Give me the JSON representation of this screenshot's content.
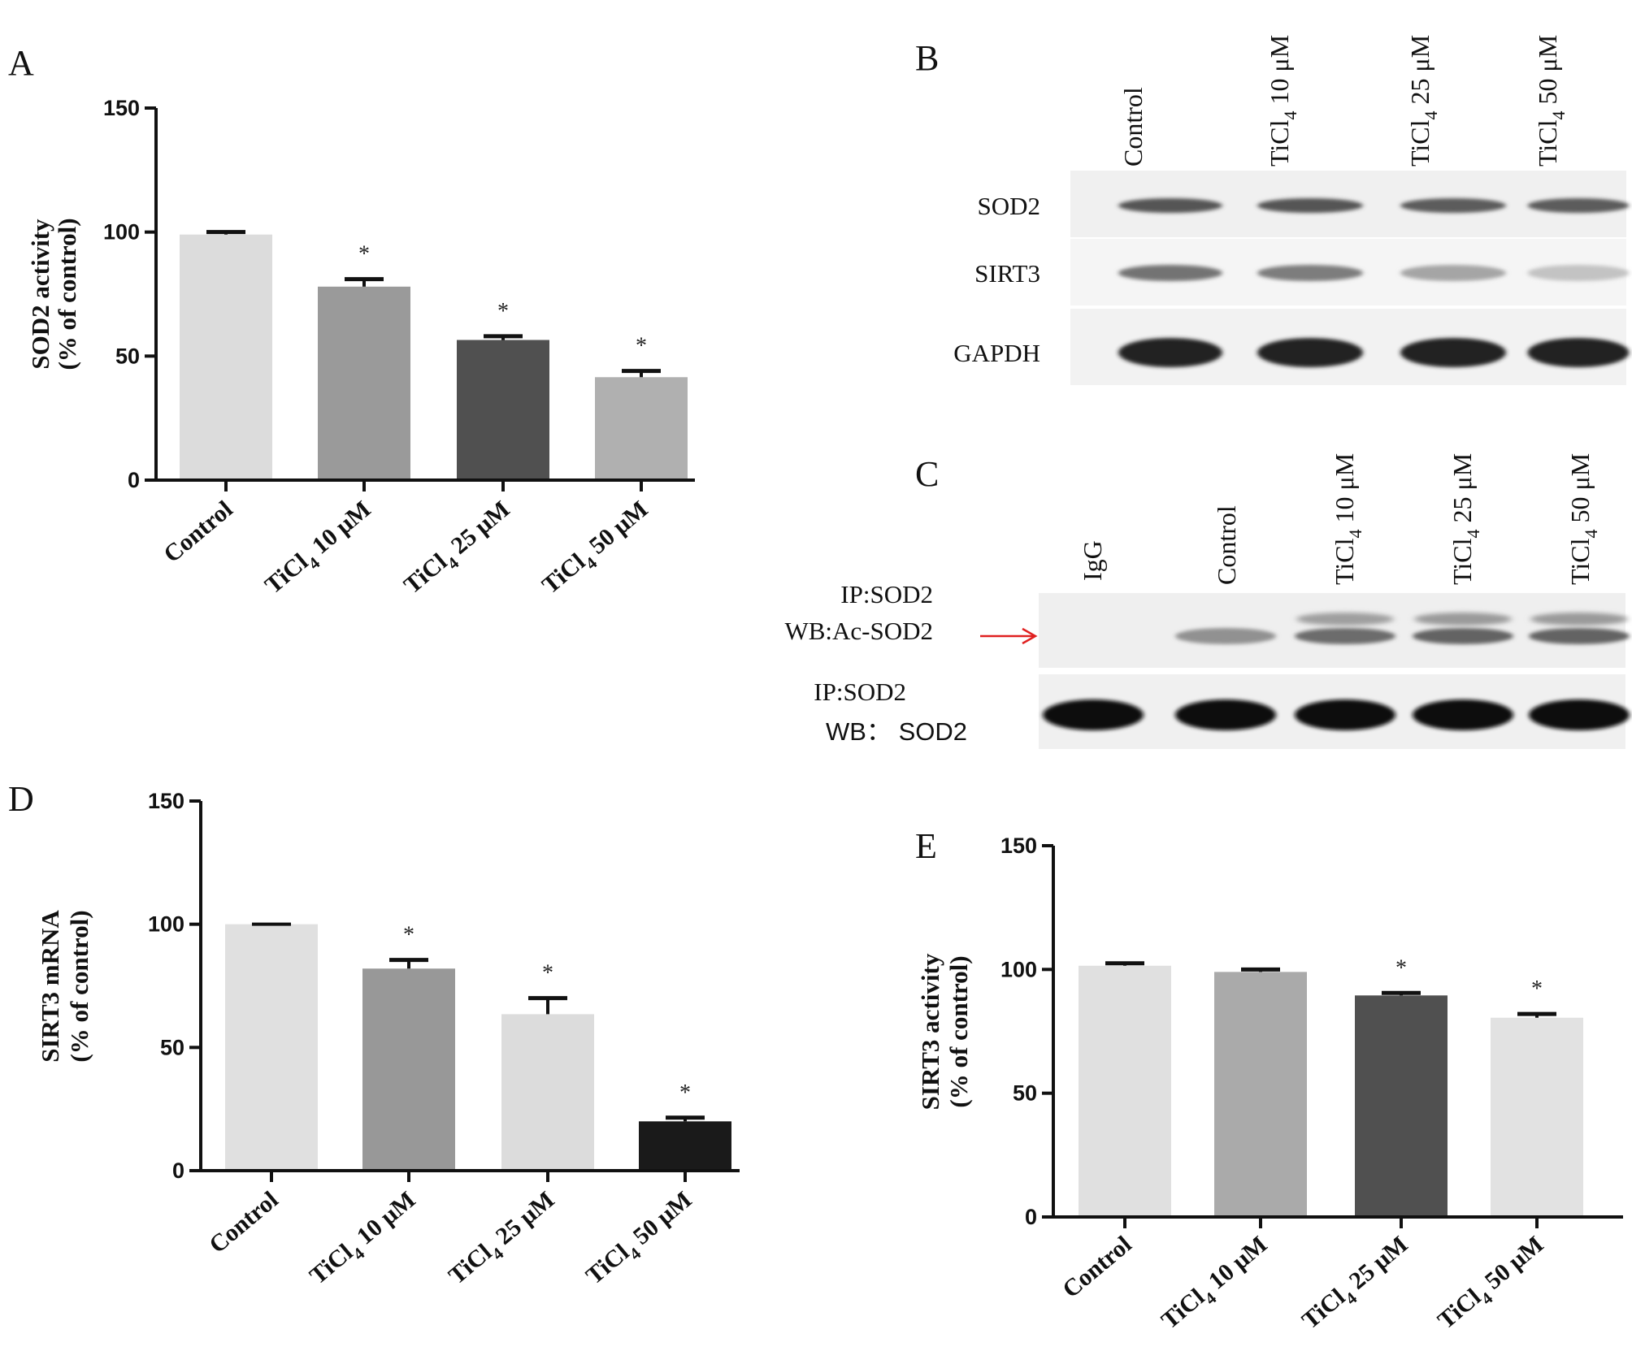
{
  "panels": [
    {
      "letter": "A",
      "chart_data": {
        "type": "bar",
        "ylabel_lines": [
          "SOD2 activity",
          "(% of control)"
        ],
        "ylim": [
          0,
          150
        ],
        "yticks": [
          0,
          50,
          100,
          150
        ],
        "categories": [
          {
            "main": "Control",
            "sub": ""
          },
          {
            "main": "TiCl",
            "sub": "4",
            "rest": " 10 μM"
          },
          {
            "main": "TiCl",
            "sub": "4",
            "rest": " 25 μM"
          },
          {
            "main": "TiCl",
            "sub": "4",
            "rest": " 50 μM"
          }
        ],
        "values": [
          99,
          78,
          56.5,
          41.5
        ],
        "errors": [
          1,
          3,
          1.5,
          2.5
        ],
        "significance": [
          "",
          "*",
          "*",
          "*"
        ],
        "bar_colors": [
          "#dcdcdc",
          "#9a9a9a",
          "#505050",
          "#b0b0b0"
        ]
      }
    },
    {
      "letter": "D",
      "chart_data": {
        "type": "bar",
        "ylabel_lines": [
          "SIRT3 mRNA",
          "(% of control)"
        ],
        "ylim": [
          0,
          150
        ],
        "yticks": [
          0,
          50,
          100,
          150
        ],
        "categories": [
          {
            "main": "Control",
            "sub": ""
          },
          {
            "main": "TiCl",
            "sub": "4",
            "rest": " 10 μM"
          },
          {
            "main": "TiCl",
            "sub": "4",
            "rest": " 25 μM"
          },
          {
            "main": "TiCl",
            "sub": "4",
            "rest": " 50 μM"
          }
        ],
        "values": [
          100,
          82,
          63.5,
          20
        ],
        "errors": [
          0,
          3.5,
          6.5,
          1.5
        ],
        "significance": [
          "",
          "*",
          "*",
          "*"
        ],
        "bar_colors": [
          "#e0e0e0",
          "#989898",
          "#dcdcdc",
          "#1a1a1a"
        ]
      }
    },
    {
      "letter": "E",
      "chart_data": {
        "type": "bar",
        "ylabel_lines": [
          "SIRT3 activity",
          "(% of control)"
        ],
        "ylim": [
          0,
          150
        ],
        "yticks": [
          0,
          50,
          100,
          150
        ],
        "categories": [
          {
            "main": "Control",
            "sub": ""
          },
          {
            "main": "TiCl",
            "sub": "4",
            "rest": " 10 μM"
          },
          {
            "main": "TiCl",
            "sub": "4",
            "rest": " 25 μM"
          },
          {
            "main": "TiCl",
            "sub": "4",
            "rest": " 50 μM"
          }
        ],
        "values": [
          101.5,
          99,
          89.5,
          80.5
        ],
        "errors": [
          1,
          1,
          1,
          1.5
        ],
        "significance": [
          "",
          "",
          "*",
          "*"
        ],
        "bar_colors": [
          "#e0e0e0",
          "#aaaaaa",
          "#505050",
          "#e2e2e2"
        ]
      }
    }
  ],
  "blot_b": {
    "letter": "B",
    "lanes": [
      {
        "main": "Control",
        "sub": ""
      },
      {
        "main": "TiCl",
        "sub": "4",
        "rest": "  10 μM"
      },
      {
        "main": "TiCl",
        "sub": "4",
        "rest": "  25 μM"
      },
      {
        "main": "TiCl",
        "sub": "4",
        "rest": "  50 μM"
      }
    ],
    "rows": [
      {
        "label": "SOD2",
        "intensity": [
          0.75,
          0.75,
          0.72,
          0.72
        ]
      },
      {
        "label": "SIRT3",
        "intensity": [
          0.6,
          0.55,
          0.35,
          0.2
        ]
      },
      {
        "label": "GAPDH",
        "intensity": [
          1,
          1,
          1,
          1
        ]
      }
    ]
  },
  "blot_c": {
    "letter": "C",
    "lanes": [
      {
        "main": "IgG",
        "sub": ""
      },
      {
        "main": "Control",
        "sub": ""
      },
      {
        "main": "TiCl",
        "sub": "4",
        "rest": "  10 μM"
      },
      {
        "main": "TiCl",
        "sub": "4",
        "rest": "  25 μM"
      },
      {
        "main": "TiCl",
        "sub": "4",
        "rest": "  50 μM"
      }
    ],
    "row1_label_lines": [
      "IP:SOD2",
      "WB:Ac-SOD2"
    ],
    "row2_label_lines": [
      "IP:SOD2",
      "WB：  SOD2"
    ],
    "row1_intensity": [
      0.0,
      0.6,
      0.85,
      0.9,
      0.9
    ],
    "row2_intensity": [
      1,
      1,
      1,
      1,
      1
    ],
    "arrow_color": "#e02020"
  }
}
